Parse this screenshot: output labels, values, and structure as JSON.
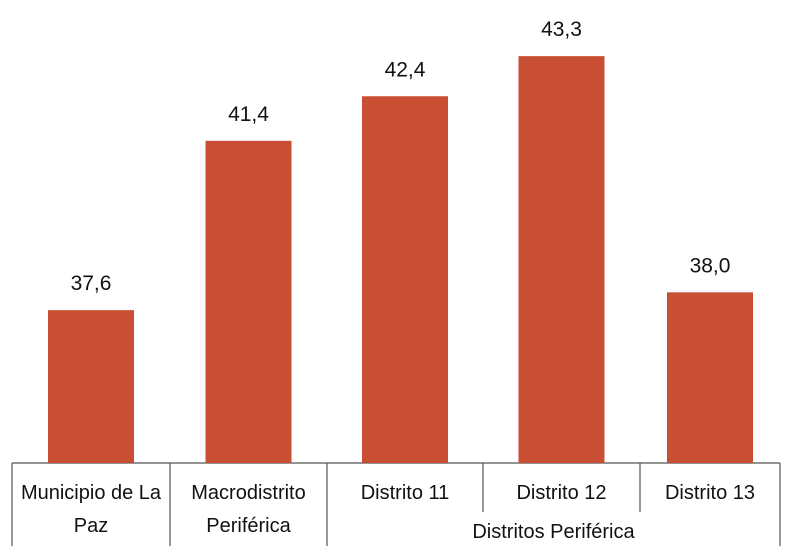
{
  "chart_data": {
    "type": "bar",
    "categories": [
      "Municipio de La Paz",
      "Macrodistrito Periférica",
      "Distrito 11",
      "Distrito 12",
      "Distrito 13"
    ],
    "values": [
      37.6,
      41.4,
      42.4,
      43.3,
      38.0
    ],
    "value_labels": [
      "37,6",
      "41,4",
      "42,4",
      "43,3",
      "38,0"
    ],
    "group_label": "Distritos Periférica",
    "color": "#c84f33",
    "ylim": [
      34.17,
      44.56
    ]
  }
}
